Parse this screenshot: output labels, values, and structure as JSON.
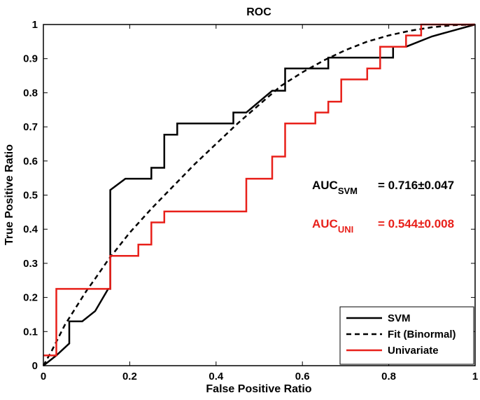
{
  "chart_data": {
    "type": "line",
    "title": "ROC",
    "xlabel": "False Positive Ratio",
    "ylabel": "True Positive Ratio",
    "xlim": [
      0,
      1
    ],
    "ylim": [
      0,
      1
    ],
    "xticks": [
      "0",
      "0.2",
      "0.4",
      "0.6",
      "0.8",
      "1"
    ],
    "yticks": [
      "0",
      "0.1",
      "0.2",
      "0.3",
      "0.4",
      "0.5",
      "0.6",
      "0.7",
      "0.8",
      "0.9",
      "1"
    ],
    "series": [
      {
        "name": "SVM",
        "color": "#000000",
        "style": "solid",
        "x": [
          0,
          0.03,
          0.06,
          0.06,
          0.09,
          0.12,
          0.15,
          0.155,
          0.155,
          0.19,
          0.22,
          0.25,
          0.25,
          0.28,
          0.28,
          0.31,
          0.31,
          0.34,
          0.44,
          0.44,
          0.47,
          0.53,
          0.56,
          0.56,
          0.66,
          0.66,
          0.69,
          0.81,
          0.81,
          0.84,
          0.9,
          1.0
        ],
        "y": [
          0,
          0.03,
          0.065,
          0.13,
          0.13,
          0.16,
          0.225,
          0.225,
          0.515,
          0.548,
          0.548,
          0.548,
          0.58,
          0.58,
          0.677,
          0.677,
          0.71,
          0.71,
          0.71,
          0.742,
          0.742,
          0.806,
          0.806,
          0.871,
          0.871,
          0.903,
          0.903,
          0.903,
          0.935,
          0.935,
          0.965,
          1.0
        ]
      },
      {
        "name": "Fit (Binormal)",
        "color": "#000000",
        "style": "dashed",
        "x": [
          0,
          0.02,
          0.05,
          0.08,
          0.1,
          0.12,
          0.15,
          0.2,
          0.25,
          0.3,
          0.35,
          0.4,
          0.45,
          0.5,
          0.55,
          0.6,
          0.65,
          0.7,
          0.75,
          0.8,
          0.85,
          0.9,
          0.95,
          1.0
        ],
        "y": [
          0,
          0.045,
          0.12,
          0.18,
          0.22,
          0.255,
          0.31,
          0.39,
          0.46,
          0.525,
          0.59,
          0.65,
          0.71,
          0.765,
          0.82,
          0.86,
          0.895,
          0.925,
          0.95,
          0.968,
          0.982,
          0.992,
          0.998,
          1.0
        ]
      },
      {
        "name": "Univariate",
        "color": "#e8201a",
        "style": "solid",
        "x": [
          0,
          0.03,
          0.03,
          0.155,
          0.155,
          0.22,
          0.22,
          0.25,
          0.25,
          0.28,
          0.28,
          0.47,
          0.47,
          0.53,
          0.53,
          0.56,
          0.56,
          0.63,
          0.63,
          0.66,
          0.66,
          0.69,
          0.69,
          0.75,
          0.75,
          0.78,
          0.78,
          0.84,
          0.84,
          0.875,
          0.875,
          1.0
        ],
        "y": [
          0.03,
          0.03,
          0.225,
          0.225,
          0.322,
          0.322,
          0.355,
          0.355,
          0.42,
          0.42,
          0.452,
          0.452,
          0.548,
          0.548,
          0.613,
          0.613,
          0.71,
          0.71,
          0.742,
          0.742,
          0.774,
          0.774,
          0.839,
          0.839,
          0.871,
          0.871,
          0.935,
          0.935,
          0.968,
          0.968,
          1.0,
          1.0
        ]
      }
    ],
    "annotations": [
      {
        "base": "AUC",
        "sub": "SVM",
        "value": "= 0.716±0.047",
        "color": "#000000"
      },
      {
        "base": "AUC",
        "sub": "UNI",
        "value": "= 0.544±0.008",
        "color": "#e8201a"
      }
    ],
    "legend": {
      "position": "bottom-right",
      "entries": [
        {
          "label": "SVM",
          "color": "#000000",
          "style": "solid"
        },
        {
          "label": "Fit (Binormal)",
          "color": "#000000",
          "style": "dashed"
        },
        {
          "label": "Univariate",
          "color": "#e8201a",
          "style": "solid"
        }
      ]
    },
    "grid": false
  }
}
